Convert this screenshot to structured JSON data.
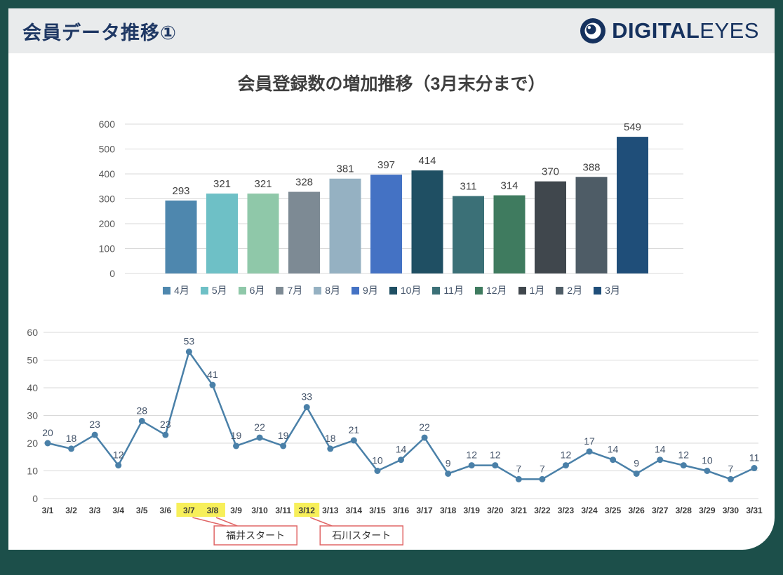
{
  "frame": {
    "background": "#1c4f4a"
  },
  "header": {
    "title": "会員データ推移①",
    "logo": {
      "bold": "DIGITAL",
      "light": "EYES"
    }
  },
  "chart_data": [
    {
      "type": "bar",
      "title": "会員登録数の増加推移（3月末分まで）",
      "categories": [
        "4月",
        "5月",
        "6月",
        "7月",
        "8月",
        "9月",
        "10月",
        "11月",
        "12月",
        "1月",
        "2月",
        "3月"
      ],
      "values": [
        293,
        321,
        321,
        328,
        381,
        397,
        414,
        311,
        314,
        370,
        388,
        549
      ],
      "colors": [
        "#4e87ae",
        "#6ec0c6",
        "#8fc8a9",
        "#7d8a94",
        "#95b1c2",
        "#4472c4",
        "#1f4f63",
        "#3b7077",
        "#3f7b5f",
        "#40474d",
        "#4e5c66",
        "#1f4e79"
      ],
      "ylim": [
        0,
        600
      ],
      "yticks": [
        0,
        100,
        200,
        300,
        400,
        500,
        600
      ],
      "grid": true,
      "legend_position": "bottom",
      "label_color": "#404040",
      "axis_color": "#595959",
      "grid_color": "#d9d9d9"
    },
    {
      "type": "line",
      "categories": [
        "3/1",
        "3/2",
        "3/3",
        "3/4",
        "3/5",
        "3/6",
        "3/7",
        "3/8",
        "3/9",
        "3/10",
        "3/11",
        "3/12",
        "3/13",
        "3/14",
        "3/15",
        "3/16",
        "3/17",
        "3/18",
        "3/19",
        "3/20",
        "3/21",
        "3/22",
        "3/23",
        "3/24",
        "3/25",
        "3/26",
        "3/27",
        "3/28",
        "3/29",
        "3/30",
        "3/31"
      ],
      "values": [
        20,
        18,
        23,
        12,
        28,
        23,
        53,
        41,
        19,
        22,
        19,
        33,
        18,
        21,
        10,
        14,
        22,
        9,
        12,
        12,
        7,
        7,
        12,
        17,
        14,
        9,
        14,
        12,
        10,
        7,
        11
      ],
      "ylim": [
        0,
        60
      ],
      "yticks": [
        0,
        10,
        20,
        30,
        40,
        50,
        60
      ],
      "grid": true,
      "line_color": "#4a80a8",
      "label_color": "#44546a",
      "axis_color": "#595959",
      "grid_color": "#d9d9d9",
      "xlabel_color": "#3b3b3b",
      "highlight_color": "#f7ef5a",
      "highlighted_categories": [
        "3/7",
        "3/8",
        "3/12"
      ],
      "annotation_color": "#e06666",
      "annotations": [
        {
          "label": "福井スタート",
          "targets": [
            "3/7",
            "3/8"
          ]
        },
        {
          "label": "石川スタート",
          "targets": [
            "3/12"
          ]
        }
      ]
    }
  ]
}
